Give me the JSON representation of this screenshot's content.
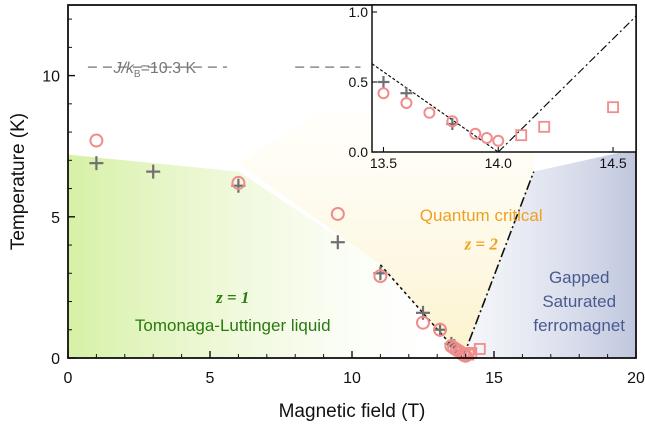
{
  "chart_data": [
    {
      "type": "scatter",
      "title": "",
      "xlabel": "Magnetic field (T)",
      "ylabel": "Temperature (K)",
      "xlim": [
        0,
        20
      ],
      "ylim": [
        0,
        12.5
      ],
      "xticks": [
        "0",
        "5",
        "10",
        "15",
        "20"
      ],
      "yticks": [
        "0",
        "5",
        "10"
      ],
      "grid": false,
      "series": [
        {
          "marker": "plus",
          "color": "#707070",
          "points": [
            [
              1.0,
              6.9
            ],
            [
              3.0,
              6.6
            ],
            [
              6.0,
              6.1
            ],
            [
              9.5,
              4.1
            ],
            [
              11.0,
              3.0
            ],
            [
              12.5,
              1.6
            ],
            [
              13.1,
              1.0
            ],
            [
              13.5,
              0.5
            ],
            [
              13.6,
              0.42
            ],
            [
              13.8,
              0.2
            ]
          ]
        },
        {
          "marker": "circle",
          "color": "#f08c8c",
          "points": [
            [
              1.0,
              7.7
            ],
            [
              6.0,
              6.2
            ],
            [
              9.5,
              5.1
            ],
            [
              11.0,
              2.9
            ],
            [
              12.5,
              1.25
            ],
            [
              13.1,
              1.0
            ],
            [
              13.5,
              0.42
            ],
            [
              13.6,
              0.35
            ],
            [
              13.7,
              0.28
            ],
            [
              13.8,
              0.22
            ],
            [
              13.9,
              0.13
            ],
            [
              13.95,
              0.1
            ],
            [
              14.0,
              0.08
            ]
          ]
        },
        {
          "marker": "square",
          "color": "#f08c8c",
          "points": [
            [
              14.1,
              0.12
            ],
            [
              14.2,
              0.18
            ],
            [
              14.5,
              0.32
            ]
          ]
        }
      ],
      "reference_line": {
        "y": 10.3,
        "label_main": "J/k",
        "label_sub": "B",
        "label_value": "=10.3 K"
      },
      "critical_lines": [
        [
          [
            11.0,
            3.3
          ],
          [
            13.9,
            0.0
          ]
        ],
        [
          [
            13.9,
            0.0
          ],
          [
            16.4,
            6.6
          ]
        ]
      ],
      "regions": {
        "tll": {
          "z": "z = 1",
          "name": "Tomonaga-Luttinger liquid",
          "color": "#2a7a0e"
        },
        "qc": {
          "name": "Quantum critical",
          "z": "z = 2",
          "color": "#f0a020"
        },
        "gapped": {
          "lines": [
            "Gapped",
            "Saturated",
            "ferromagnet"
          ],
          "color": "#4a5a90"
        }
      }
    },
    {
      "type": "scatter",
      "xlim": [
        13.45,
        14.6
      ],
      "ylim": [
        0,
        1.05
      ],
      "xticks": [
        "13.5",
        "14.0",
        "14.5"
      ],
      "yticks": [
        "0.0",
        "0.5",
        "1.0"
      ]
    }
  ]
}
